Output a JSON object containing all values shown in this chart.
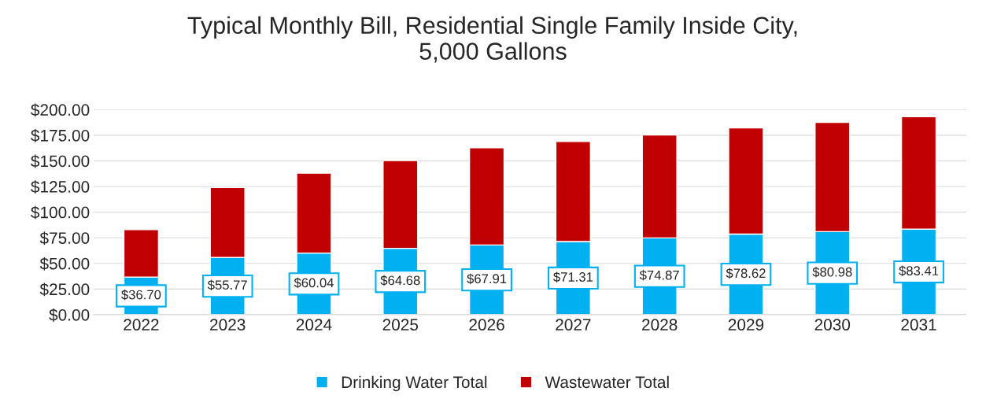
{
  "chart_data": {
    "type": "bar",
    "title": "Typical Monthly Bill, Residential Single Family Inside City,\n5,000 Gallons",
    "stacked": true,
    "categories": [
      "2022",
      "2023",
      "2024",
      "2025",
      "2026",
      "2027",
      "2028",
      "2029",
      "2030",
      "2031"
    ],
    "series": [
      {
        "name": "Drinking Water Total",
        "color": "#00b0f0",
        "values": [
          36.7,
          55.77,
          60.04,
          64.68,
          67.91,
          71.31,
          74.87,
          78.62,
          80.98,
          83.41
        ],
        "value_labels": [
          "$36.70",
          "$55.77",
          "$60.04",
          "$64.68",
          "$67.91",
          "$71.31",
          "$74.87",
          "$78.62",
          "$80.98",
          "$83.41"
        ]
      },
      {
        "name": "Wastewater Total",
        "color": "#c00000",
        "values": [
          46.3,
          68.2,
          78,
          85.7,
          94.9,
          97.7,
          100.3,
          103.6,
          106.6,
          109.6
        ]
      }
    ],
    "ylim": [
      0,
      200
    ],
    "yticks": [
      {
        "value": 0,
        "label": "$0.00"
      },
      {
        "value": 25,
        "label": "$25.00"
      },
      {
        "value": 50,
        "label": "$50.00"
      },
      {
        "value": 75,
        "label": "$75.00"
      },
      {
        "value": 100,
        "label": "$100.00"
      },
      {
        "value": 125,
        "label": "$125.00"
      },
      {
        "value": 150,
        "label": "$150.00"
      },
      {
        "value": 175,
        "label": "$175.00"
      },
      {
        "value": 200,
        "label": "$200.00"
      }
    ],
    "grid": "y",
    "legend": "bottom"
  }
}
